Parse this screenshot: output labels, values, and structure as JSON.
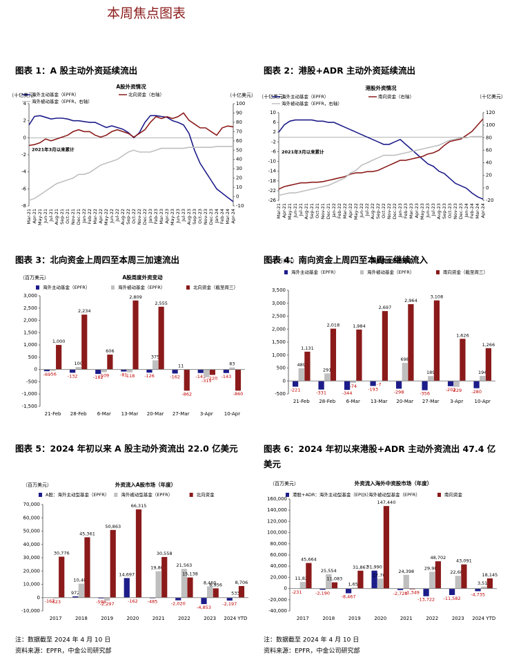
{
  "header": {
    "title": "本周焦点图表"
  },
  "footnotes": [
    [
      "注：数据截至 2024 年 4 月 10 日",
      "资料来源：EPFR，中金公司研究部"
    ],
    [
      "注：数据截至 2024 年 4 月 10 日",
      "资料来源：EPFR，中金公司研究部"
    ]
  ],
  "chart_data": [
    {
      "type": "line",
      "figure_title": "图表 1：A 股主动外资延续流出",
      "title": "A股外资情况",
      "y_unit": "（十亿美元）",
      "y2_unit": "（十亿美元）",
      "annotation": "2021年3月以来累计",
      "grid": false,
      "categories": [
        "Mar-21",
        "Apr-21",
        "May-21",
        "Jun-21",
        "Jul-21",
        "Aug-21",
        "Sep-21",
        "Oct-21",
        "Nov-21",
        "Dec-21",
        "Jan-22",
        "Feb-22",
        "Mar-22",
        "Apr-22",
        "May-22",
        "Jun-22",
        "Jul-22",
        "Aug-22",
        "Sep-22",
        "Oct-22",
        "Nov-22",
        "Dec-22",
        "Jan-23",
        "Feb-23",
        "Mar-23",
        "Apr-23",
        "May-23",
        "Jun-23",
        "Jul-23",
        "Aug-23",
        "Sep-23",
        "Oct-23",
        "Nov-23",
        "Dec-23",
        "Jan-24",
        "Feb-24",
        "Mar-24",
        "Apr-24"
      ],
      "ylim": [
        -8,
        4
      ],
      "yticks": [
        -8,
        -6,
        -4,
        -2,
        0,
        2,
        4
      ],
      "y2lim": [
        -10,
        100
      ],
      "y2ticks": [
        -10,
        0,
        10,
        20,
        30,
        40,
        50,
        60,
        70,
        80,
        90,
        100
      ],
      "series": [
        {
          "name": "海外主动基金（EPFR）",
          "color": "#1c1c8a",
          "values": [
            1.5,
            2.5,
            2.6,
            2.4,
            2.2,
            2.3,
            2.3,
            2.2,
            2.0,
            2.0,
            1.9,
            1.8,
            1.8,
            1.5,
            1.2,
            1.4,
            1.2,
            1.0,
            0.6,
            0.0,
            0.6,
            1.8,
            2.6,
            2.6,
            2.5,
            2.4,
            2.0,
            1.8,
            1.5,
            0.5,
            -1.5,
            -3.0,
            -4.0,
            -5.0,
            -6.0,
            -6.5,
            -7.0,
            -7.5
          ]
        },
        {
          "name": "北向资金（右轴）",
          "color": "#8b1a1a",
          "axis": "y2",
          "values": [
            55,
            56,
            58,
            62,
            60,
            62,
            64,
            66,
            70,
            72,
            70,
            70,
            66,
            64,
            66,
            70,
            72,
            70,
            68,
            64,
            68,
            72,
            80,
            86,
            84,
            86,
            84,
            86,
            90,
            82,
            78,
            74,
            74,
            70,
            66,
            74,
            76,
            75
          ]
        },
        {
          "name": "海外被动基金（EPFR，右轴）",
          "color": "#bfbfbf",
          "axis": "y2",
          "values": [
            -4,
            -2,
            2,
            6,
            10,
            14,
            16,
            18,
            20,
            24,
            24,
            26,
            30,
            34,
            36,
            38,
            40,
            44,
            48,
            50,
            48,
            48,
            48,
            50,
            52,
            52,
            52,
            52,
            52,
            53,
            53,
            53,
            53,
            53,
            54,
            54,
            54,
            54
          ]
        }
      ]
    },
    {
      "type": "line",
      "figure_title": "图表 2：港股+ADR 主动外资延续流出",
      "title": "港股外资情况",
      "y_unit": "（十亿美元）",
      "y2_unit": "（十亿美元）",
      "annotation": "2021年3月以来累计",
      "grid": false,
      "categories": [
        "Mar-21",
        "Apr-21",
        "May-21",
        "Jun-21",
        "Jul-21",
        "Aug-21",
        "Sep-21",
        "Oct-21",
        "Nov-21",
        "Dec-21",
        "Jan-22",
        "Feb-22",
        "Mar-22",
        "Apr-22",
        "May-22",
        "Jun-22",
        "Jul-22",
        "Aug-22",
        "Sep-22",
        "Oct-22",
        "Nov-22",
        "Dec-22",
        "Jan-23",
        "Feb-23",
        "Mar-23",
        "Apr-23",
        "May-23",
        "Jun-23",
        "Jul-23",
        "Aug-23",
        "Sep-23",
        "Oct-23",
        "Nov-23",
        "Dec-23",
        "Jan-24",
        "Feb-24",
        "Mar-24",
        "Apr-24"
      ],
      "ylim": [
        -26,
        10
      ],
      "yticks": [
        -26,
        -22,
        -18,
        -14,
        -10,
        -6,
        -2,
        2,
        6,
        10
      ],
      "y2lim": [
        -20,
        120
      ],
      "y2ticks": [
        -20,
        0,
        20,
        40,
        60,
        80,
        100,
        120
      ],
      "series": [
        {
          "name": "海外主动基金（EPFR）",
          "color": "#1c1c8a",
          "values": [
            2,
            5,
            6.5,
            7,
            7,
            7,
            7,
            6.5,
            6.5,
            6,
            6,
            5,
            4,
            3,
            2,
            1,
            0,
            -1,
            -2,
            -3,
            -3,
            -2,
            -1,
            -3,
            -5,
            -7,
            -9,
            -11,
            -12,
            -14,
            -15,
            -17,
            -19,
            -20,
            -21,
            -23,
            -24.5,
            -25.5
          ]
        },
        {
          "name": "南向资金（右轴）",
          "color": "#8b1a1a",
          "axis": "y2",
          "values": [
            -2,
            2,
            4,
            6,
            8,
            8,
            9,
            9,
            10,
            12,
            14,
            16,
            18,
            22,
            24,
            24,
            26,
            26,
            28,
            32,
            36,
            40,
            44,
            44,
            46,
            48,
            50,
            54,
            56,
            60,
            68,
            74,
            76,
            78,
            84,
            90,
            100,
            110
          ]
        },
        {
          "name": "海外被动基金（EPFR，右轴）",
          "color": "#bfbfbf",
          "axis": "y2",
          "values": [
            -12,
            -10,
            -8,
            -8,
            -6,
            -4,
            -2,
            0,
            2,
            4,
            8,
            12,
            16,
            24,
            28,
            36,
            40,
            44,
            48,
            52,
            52,
            52,
            54,
            56,
            58,
            60,
            62,
            64,
            66,
            68,
            72,
            76,
            78,
            80,
            80,
            82,
            82,
            82
          ]
        }
      ]
    },
    {
      "type": "bar",
      "figure_title": "图表 3：北向资金上周四至本周三加速流出",
      "title": "A股周度外资变动",
      "y_unit": "（百万美元）",
      "grid": false,
      "categories": [
        "21-Feb",
        "28-Feb",
        "6-Mar",
        "13-Mar",
        "20-Mar",
        "27-Mar",
        "3-Apr",
        "10-Apr"
      ],
      "ylim": [
        -1500,
        3000
      ],
      "yticks": [
        {
          "value": -1500,
          "label": "-1,500"
        },
        {
          "value": -1000,
          "label": "-1,000"
        },
        -500,
        0,
        500,
        {
          "value": 1000,
          "label": "1,000"
        },
        {
          "value": 1500,
          "label": "1,500"
        },
        {
          "value": 2000,
          "label": "2,000"
        },
        {
          "value": 2500,
          "label": "2,500"
        },
        {
          "value": 3000,
          "label": "3,000"
        }
      ],
      "series": [
        {
          "name": "海外主动基金（EPFR）",
          "color": "#1c1c8a",
          "values": [
            -69,
            -132,
            -182,
            -81,
            -126,
            -162,
            -143,
            -143
          ]
        },
        {
          "name": "海外被动基金（EPFR）",
          "color": "#bfbfbf",
          "values": [
            -56,
            100,
            -109,
            -118,
            375,
            11,
            -315,
            83
          ]
        },
        {
          "name": "北向资金（截至周三）",
          "color": "#8b1a1a",
          "values": [
            1000,
            2234,
            606,
            2809,
            2555,
            -862,
            -220,
            -860
          ],
          "value_labels": [
            "1,000",
            "2,234",
            "606",
            "2,809",
            "2,555",
            "-862",
            "-220",
            "-860"
          ]
        }
      ]
    },
    {
      "type": "bar",
      "figure_title": "图表 4：南向资金上周四至本周三继续流入",
      "title": "港股周度外资变动",
      "y_unit": "（百万美元）",
      "grid": false,
      "categories": [
        "21-Feb",
        "28-Feb",
        "6-Mar",
        "13-Mar",
        "20-Mar",
        "27-Mar",
        "3-Apr",
        "10-Apr"
      ],
      "ylim": [
        -500,
        3500
      ],
      "yticks": [
        -500,
        0,
        500,
        {
          "value": 1000,
          "label": "1,000"
        },
        {
          "value": 1500,
          "label": "1,500"
        },
        {
          "value": 2000,
          "label": "2,000"
        },
        {
          "value": 2500,
          "label": "2,500"
        },
        {
          "value": 3000,
          "label": "3,000"
        },
        {
          "value": 3500,
          "label": "3,500"
        }
      ],
      "series": [
        {
          "name": "海外主动基金（EPFR）",
          "color": "#1c1c8a",
          "values": [
            -221,
            -331,
            -344,
            -193,
            -298,
            -356,
            -202,
            -280
          ]
        },
        {
          "name": "海外被动基金（EPFR）",
          "color": "#bfbfbf",
          "values": [
            489,
            291,
            -74,
            -7,
            698,
            189,
            -229,
            194
          ]
        },
        {
          "name": "南向资金（截至周三）",
          "color": "#8b1a1a",
          "values": [
            1131,
            2018,
            1984,
            2697,
            2964,
            3108,
            1626,
            1266
          ],
          "value_labels": [
            "1,131",
            "2,018",
            "1,984",
            "2,697",
            "2,964",
            "3,108",
            "1,626",
            "1,266"
          ]
        }
      ]
    },
    {
      "type": "bar",
      "figure_title": "图表 5：2024 年初以来 A 股主动外资流出 22.0 亿美元",
      "title": "外资流入A股市场（年度）",
      "y_unit": "（百万美元）",
      "grid": false,
      "categories": [
        "2017",
        "2018",
        "2019",
        "2020",
        "2021",
        "2022",
        "2023",
        "2024 YTD"
      ],
      "ylim": [
        -10000,
        70000
      ],
      "yticks": [
        {
          "value": -10000,
          "label": "-10,000"
        },
        0,
        {
          "value": 10000,
          "label": "10,000"
        },
        {
          "value": 20000,
          "label": "20,000"
        },
        {
          "value": 30000,
          "label": "30,000"
        },
        {
          "value": 40000,
          "label": "40,000"
        },
        {
          "value": 50000,
          "label": "50,000"
        },
        {
          "value": 60000,
          "label": "60,000"
        },
        {
          "value": 70000,
          "label": "70,000"
        }
      ],
      "series": [
        {
          "name": "A股：海外主动型基金（EPFR）",
          "color": "#1c1c8a",
          "values": [
            -167,
            972,
            -598,
            14697,
            -485,
            -2020,
            -4853,
            -2197
          ],
          "value_labels": [
            "-167",
            "972",
            "-598",
            "14,697",
            "-485",
            "-2,020",
            "-4,853",
            "-2,197"
          ]
        },
        {
          "name": "海外被动型基金（EPFR）",
          "color": "#bfbfbf",
          "values": [
            -623,
            10488,
            -2297,
            -162,
            19806,
            21563,
            8460,
            533
          ],
          "value_labels": [
            "-623",
            "10,488",
            "-2,297",
            "-162",
            "19,806",
            "21,563",
            "8,460",
            "533"
          ]
        },
        {
          "name": "北向资金",
          "color": "#8b1a1a",
          "values": [
            30776,
            45361,
            50863,
            66315,
            30558,
            15138,
            6956,
            8706
          ],
          "value_labels": [
            "30,776",
            "45,361",
            "50,863",
            "66,315",
            "30,558",
            "15,138",
            "6,956",
            "8,706"
          ]
        }
      ]
    },
    {
      "type": "bar",
      "figure_title": "图表 6：2024 年初以来港股+ADR 主动外资流出 47.4 亿美元",
      "title": "外资流入海外中资股市场（年度）",
      "y_unit": "（百万美元）",
      "grid": false,
      "categories": [
        "2017",
        "2018",
        "2019",
        "2020",
        "2021",
        "2022",
        "2023",
        "2024 YTD"
      ],
      "ylim": [
        -40000,
        160000
      ],
      "yticks": [
        {
          "value": -40000,
          "label": "-40,000"
        },
        {
          "value": -20000,
          "label": "-20,000"
        },
        0,
        {
          "value": 20000,
          "label": "20,000"
        },
        {
          "value": 40000,
          "label": "40,000"
        },
        {
          "value": 60000,
          "label": "60,000"
        },
        {
          "value": 80000,
          "label": "80,000"
        },
        {
          "value": 100000,
          "label": "100,000"
        },
        {
          "value": 120000,
          "label": "120,000"
        },
        {
          "value": 140000,
          "label": "140,000"
        },
        {
          "value": 160000,
          "label": "160,000"
        }
      ],
      "series": [
        {
          "name": "港股+ADR：海外主动型基金（EPFR）",
          "color": "#1c1c8a",
          "values": [
            -231,
            -2190,
            -8467,
            31990,
            -2728,
            -13722,
            -11582,
            -4735
          ],
          "value_labels": [
            "-231",
            "-2,190",
            "-8,467",
            "31,990",
            "-2,728",
            "-13,722",
            "-11,582",
            "-4,735"
          ]
        },
        {
          "name": "海外被动型基金（EPFR）",
          "color": "#bfbfbf",
          "values": [
            11823,
            25554,
            1650,
            17708,
            24398,
            29985,
            22680,
            3510
          ],
          "value_labels": [
            "11,823",
            "25,554",
            "1,650",
            "17,708",
            "24,398",
            "29,985",
            "22,680",
            "3,510"
          ]
        },
        {
          "name": "南向资金",
          "color": "#8b1a1a",
          "values": [
            45664,
            11083,
            31867,
            147440,
            -1349,
            48702,
            43091,
            18145
          ],
          "value_labels": [
            "45,664",
            "11,083",
            "31,867",
            "147,440",
            "-1,349",
            "48,702",
            "43,091",
            "18,145"
          ]
        }
      ]
    }
  ]
}
